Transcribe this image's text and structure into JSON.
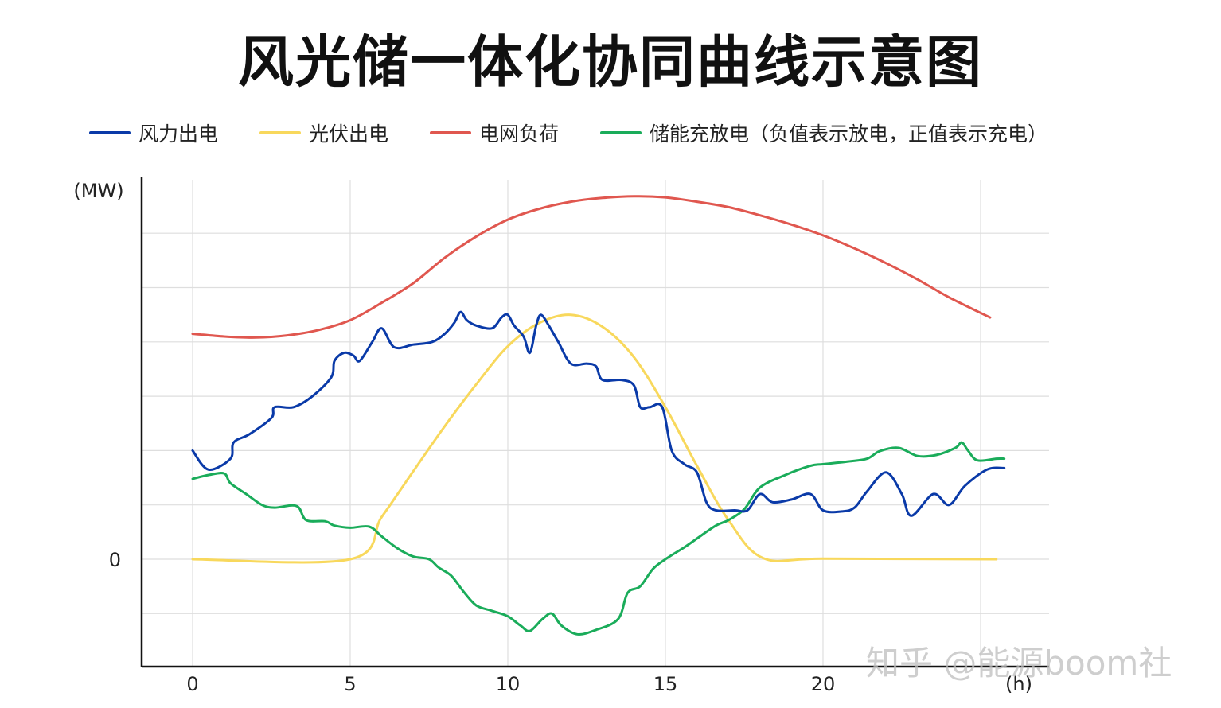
{
  "chart_data": {
    "type": "line",
    "title": "风光储一体化协同曲线示意图",
    "ylabel": "(MW)",
    "xlabel": "(h)",
    "xlim": [
      -1.6,
      27
    ],
    "ylim": [
      -2,
      7.1
    ],
    "x_ticks": [
      0,
      5,
      10,
      15,
      20
    ],
    "y_ticks": [
      0
    ],
    "grid": true,
    "legend_position": "top",
    "series": [
      {
        "name": "风力出电",
        "color": "#0a3aa8",
        "points": [
          [
            0,
            2.0
          ],
          [
            0.5,
            1.65
          ],
          [
            1.2,
            1.85
          ],
          [
            1.3,
            2.15
          ],
          [
            1.8,
            2.3
          ],
          [
            2.5,
            2.6
          ],
          [
            2.6,
            2.8
          ],
          [
            3.2,
            2.8
          ],
          [
            3.8,
            3.0
          ],
          [
            4.4,
            3.35
          ],
          [
            4.5,
            3.65
          ],
          [
            4.8,
            3.8
          ],
          [
            5.1,
            3.75
          ],
          [
            5.3,
            3.65
          ],
          [
            5.7,
            4.0
          ],
          [
            6.0,
            4.25
          ],
          [
            6.4,
            3.9
          ],
          [
            7.0,
            3.95
          ],
          [
            7.6,
            4.0
          ],
          [
            8.0,
            4.15
          ],
          [
            8.3,
            4.35
          ],
          [
            8.5,
            4.55
          ],
          [
            8.7,
            4.4
          ],
          [
            9.0,
            4.3
          ],
          [
            9.5,
            4.25
          ],
          [
            9.8,
            4.45
          ],
          [
            10.0,
            4.5
          ],
          [
            10.2,
            4.3
          ],
          [
            10.5,
            4.1
          ],
          [
            10.7,
            3.8
          ],
          [
            10.9,
            4.3
          ],
          [
            11.05,
            4.5
          ],
          [
            11.3,
            4.3
          ],
          [
            11.6,
            4.0
          ],
          [
            12.0,
            3.6
          ],
          [
            12.5,
            3.6
          ],
          [
            12.8,
            3.55
          ],
          [
            13.0,
            3.3
          ],
          [
            13.6,
            3.3
          ],
          [
            14.0,
            3.2
          ],
          [
            14.2,
            2.8
          ],
          [
            14.5,
            2.8
          ],
          [
            14.9,
            2.8
          ],
          [
            15.2,
            2.0
          ],
          [
            15.6,
            1.75
          ],
          [
            16.0,
            1.6
          ],
          [
            16.3,
            1.05
          ],
          [
            16.6,
            0.9
          ],
          [
            17.2,
            0.9
          ],
          [
            17.6,
            0.9
          ],
          [
            18.0,
            1.2
          ],
          [
            18.4,
            1.05
          ],
          [
            19.0,
            1.1
          ],
          [
            19.6,
            1.2
          ],
          [
            20.0,
            0.9
          ],
          [
            20.6,
            0.88
          ],
          [
            21.0,
            0.95
          ],
          [
            21.4,
            1.25
          ],
          [
            22.0,
            1.6
          ],
          [
            22.5,
            1.2
          ],
          [
            22.8,
            0.8
          ],
          [
            23.5,
            1.2
          ],
          [
            24.0,
            1.0
          ],
          [
            24.5,
            1.35
          ],
          [
            25.2,
            1.65
          ],
          [
            25.75,
            1.68
          ]
        ]
      },
      {
        "name": "光伏出电",
        "color": "#f8d85c",
        "points": [
          [
            0,
            0
          ],
          [
            5.0,
            0
          ],
          [
            6,
            0.78
          ],
          [
            7,
            1.62
          ],
          [
            8,
            2.45
          ],
          [
            9,
            3.22
          ],
          [
            10,
            3.92
          ],
          [
            11,
            4.35
          ],
          [
            12,
            4.5
          ],
          [
            13,
            4.28
          ],
          [
            14,
            3.72
          ],
          [
            15,
            2.8
          ],
          [
            16,
            1.72
          ],
          [
            17,
            0.72
          ],
          [
            18.1,
            0.02
          ],
          [
            20,
            0.01
          ],
          [
            25.5,
            0
          ]
        ]
      },
      {
        "name": "电网负荷",
        "color": "#e0574f",
        "points": [
          [
            0,
            4.15
          ],
          [
            1,
            4.1
          ],
          [
            2,
            4.08
          ],
          [
            3,
            4.12
          ],
          [
            4,
            4.22
          ],
          [
            5,
            4.4
          ],
          [
            6,
            4.72
          ],
          [
            7,
            5.08
          ],
          [
            8,
            5.55
          ],
          [
            9,
            5.94
          ],
          [
            10,
            6.25
          ],
          [
            11,
            6.45
          ],
          [
            12,
            6.58
          ],
          [
            13,
            6.65
          ],
          [
            14,
            6.68
          ],
          [
            15,
            6.66
          ],
          [
            16,
            6.58
          ],
          [
            17,
            6.48
          ],
          [
            18,
            6.33
          ],
          [
            19,
            6.16
          ],
          [
            20,
            5.96
          ],
          [
            21,
            5.72
          ],
          [
            22,
            5.45
          ],
          [
            23,
            5.15
          ],
          [
            24,
            4.82
          ],
          [
            25.3,
            4.45
          ]
        ]
      },
      {
        "name": "储能充放电（负值表示放电，正值表示充电）",
        "color": "#1aac5a",
        "points": [
          [
            0,
            1.48
          ],
          [
            0.5,
            1.55
          ],
          [
            1,
            1.58
          ],
          [
            1.2,
            1.4
          ],
          [
            1.7,
            1.2
          ],
          [
            2.2,
            1.0
          ],
          [
            2.6,
            0.95
          ],
          [
            3.3,
            0.98
          ],
          [
            3.6,
            0.72
          ],
          [
            4.2,
            0.7
          ],
          [
            4.5,
            0.62
          ],
          [
            5.0,
            0.58
          ],
          [
            5.6,
            0.6
          ],
          [
            6.0,
            0.42
          ],
          [
            6.5,
            0.2
          ],
          [
            7.0,
            0.05
          ],
          [
            7.5,
            0.0
          ],
          [
            7.8,
            -0.15
          ],
          [
            8.2,
            -0.3
          ],
          [
            8.6,
            -0.6
          ],
          [
            9.0,
            -0.85
          ],
          [
            9.5,
            -0.95
          ],
          [
            10.0,
            -1.05
          ],
          [
            10.4,
            -1.22
          ],
          [
            10.7,
            -1.32
          ],
          [
            11.1,
            -1.1
          ],
          [
            11.4,
            -1.0
          ],
          [
            11.7,
            -1.22
          ],
          [
            12.2,
            -1.38
          ],
          [
            12.8,
            -1.3
          ],
          [
            13.5,
            -1.1
          ],
          [
            13.8,
            -0.62
          ],
          [
            14.2,
            -0.5
          ],
          [
            14.6,
            -0.18
          ],
          [
            15.0,
            0.0
          ],
          [
            15.6,
            0.22
          ],
          [
            16.0,
            0.38
          ],
          [
            16.6,
            0.62
          ],
          [
            17.0,
            0.72
          ],
          [
            17.5,
            0.92
          ],
          [
            18.0,
            1.32
          ],
          [
            18.8,
            1.55
          ],
          [
            19.6,
            1.72
          ],
          [
            20.0,
            1.75
          ],
          [
            20.8,
            1.8
          ],
          [
            21.4,
            1.85
          ],
          [
            21.8,
            1.99
          ],
          [
            22.4,
            2.05
          ],
          [
            23.0,
            1.9
          ],
          [
            23.6,
            1.92
          ],
          [
            24.2,
            2.05
          ],
          [
            24.4,
            2.15
          ],
          [
            24.6,
            2.0
          ],
          [
            24.9,
            1.82
          ],
          [
            25.5,
            1.85
          ],
          [
            25.75,
            1.85
          ]
        ]
      }
    ]
  },
  "watermark_text": "知乎 @能源boom社"
}
